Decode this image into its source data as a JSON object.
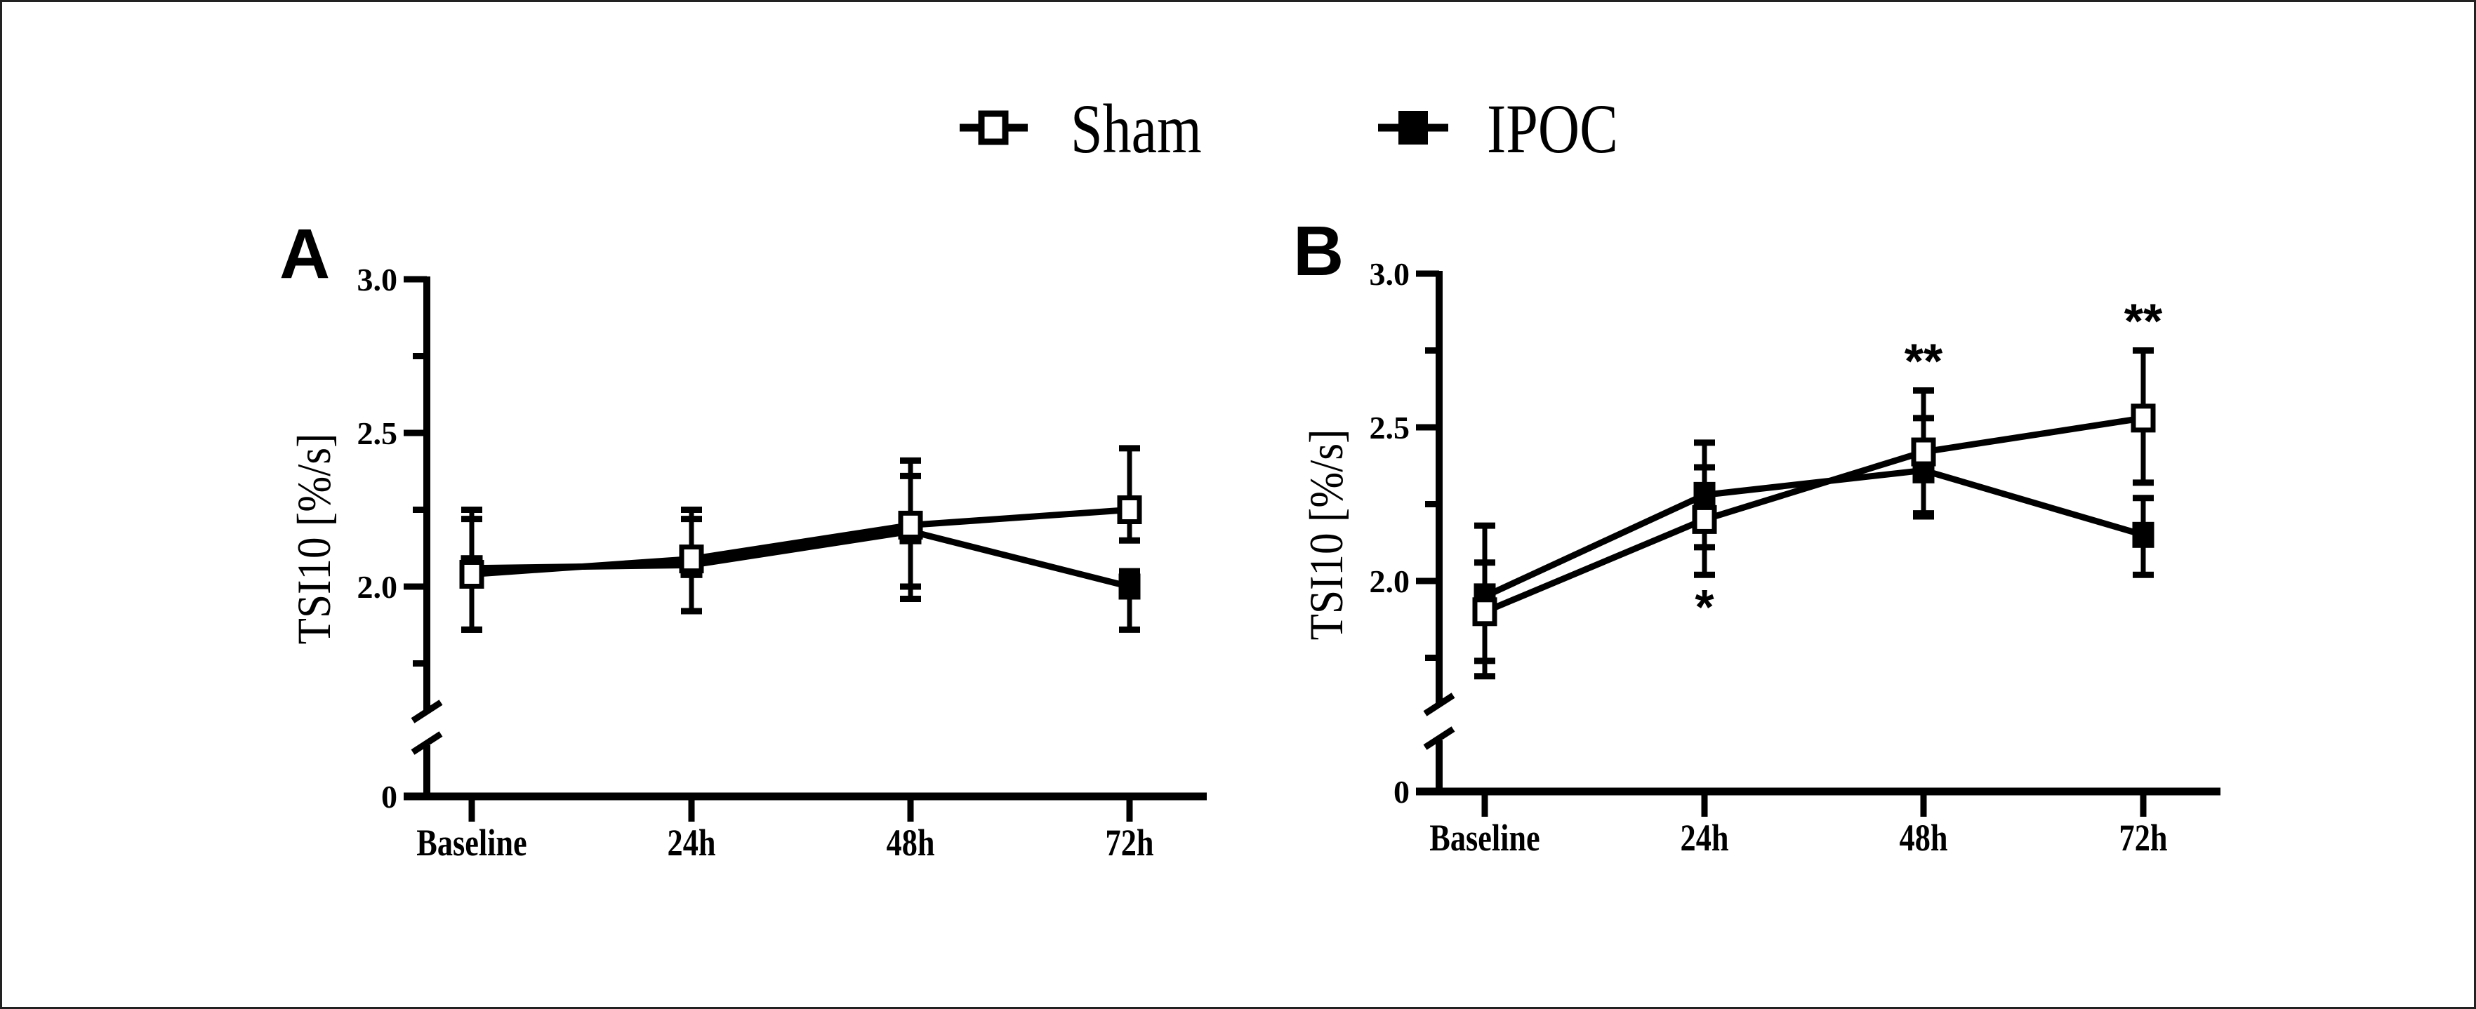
{
  "legend": {
    "placement": "top-center",
    "items": [
      {
        "name": "Sham",
        "marker": "open-square"
      },
      {
        "name": "IPOC",
        "marker": "filled-square"
      }
    ]
  },
  "chart_data": [
    {
      "type": "line",
      "panel_label": "A",
      "title": "",
      "xlabel": "",
      "ylabel": "TSI10 [%/s]",
      "categories": [
        "Baseline",
        "24h",
        "48h",
        "72h"
      ],
      "ylim": [
        0,
        3.0
      ],
      "axis_break": [
        0,
        1.6
      ],
      "y_ticks": [
        "3.0",
        "2.5",
        "2.0",
        "0"
      ],
      "y_tick_values": [
        3.0,
        2.5,
        2.0,
        0
      ],
      "y_minor_ticks": [
        2.75,
        2.25,
        1.75
      ],
      "grid": false,
      "error_bars": true,
      "series": [
        {
          "name": "Sham",
          "marker": "open-square",
          "values": [
            2.04,
            2.09,
            2.2,
            2.25
          ],
          "err_upper": [
            2.25,
            2.25,
            2.41,
            2.45
          ],
          "err_lower": [
            1.86,
            1.92,
            1.96,
            2.15
          ]
        },
        {
          "name": "IPOC",
          "marker": "filled-square",
          "values": [
            2.06,
            2.07,
            2.18,
            2.0
          ],
          "err_upper": [
            2.22,
            2.22,
            2.36,
            2.05
          ],
          "err_lower": [
            1.86,
            1.92,
            2.0,
            1.86
          ]
        }
      ],
      "annotations": []
    },
    {
      "type": "line",
      "panel_label": "B",
      "title": "",
      "xlabel": "",
      "ylabel": "TSI10  [%/s]",
      "categories": [
        "Baseline",
        "24h",
        "48h",
        "72h"
      ],
      "ylim": [
        0,
        3.0
      ],
      "axis_break": [
        0,
        1.6
      ],
      "y_ticks": [
        "3.0",
        "2.5",
        "2.0",
        "0"
      ],
      "y_tick_values": [
        3.0,
        2.5,
        2.0,
        0
      ],
      "y_minor_ticks": [
        2.75,
        2.25,
        1.75
      ],
      "grid": false,
      "error_bars": true,
      "series": [
        {
          "name": "Sham",
          "marker": "open-square",
          "values": [
            1.9,
            2.2,
            2.42,
            2.53
          ],
          "err_upper": [
            2.06,
            2.37,
            2.62,
            2.75
          ],
          "err_lower": [
            1.69,
            2.02,
            2.22,
            2.32
          ]
        },
        {
          "name": "IPOC",
          "marker": "filled-square",
          "values": [
            1.95,
            2.28,
            2.36,
            2.15
          ],
          "err_upper": [
            2.18,
            2.45,
            2.53,
            2.27
          ],
          "err_lower": [
            1.74,
            2.11,
            2.21,
            2.02
          ]
        }
      ],
      "annotations": [
        {
          "category": "24h",
          "text": "*",
          "position": "below"
        },
        {
          "category": "48h",
          "text": "**",
          "position": "above"
        },
        {
          "category": "72h",
          "text": "**",
          "position": "above"
        }
      ]
    }
  ]
}
